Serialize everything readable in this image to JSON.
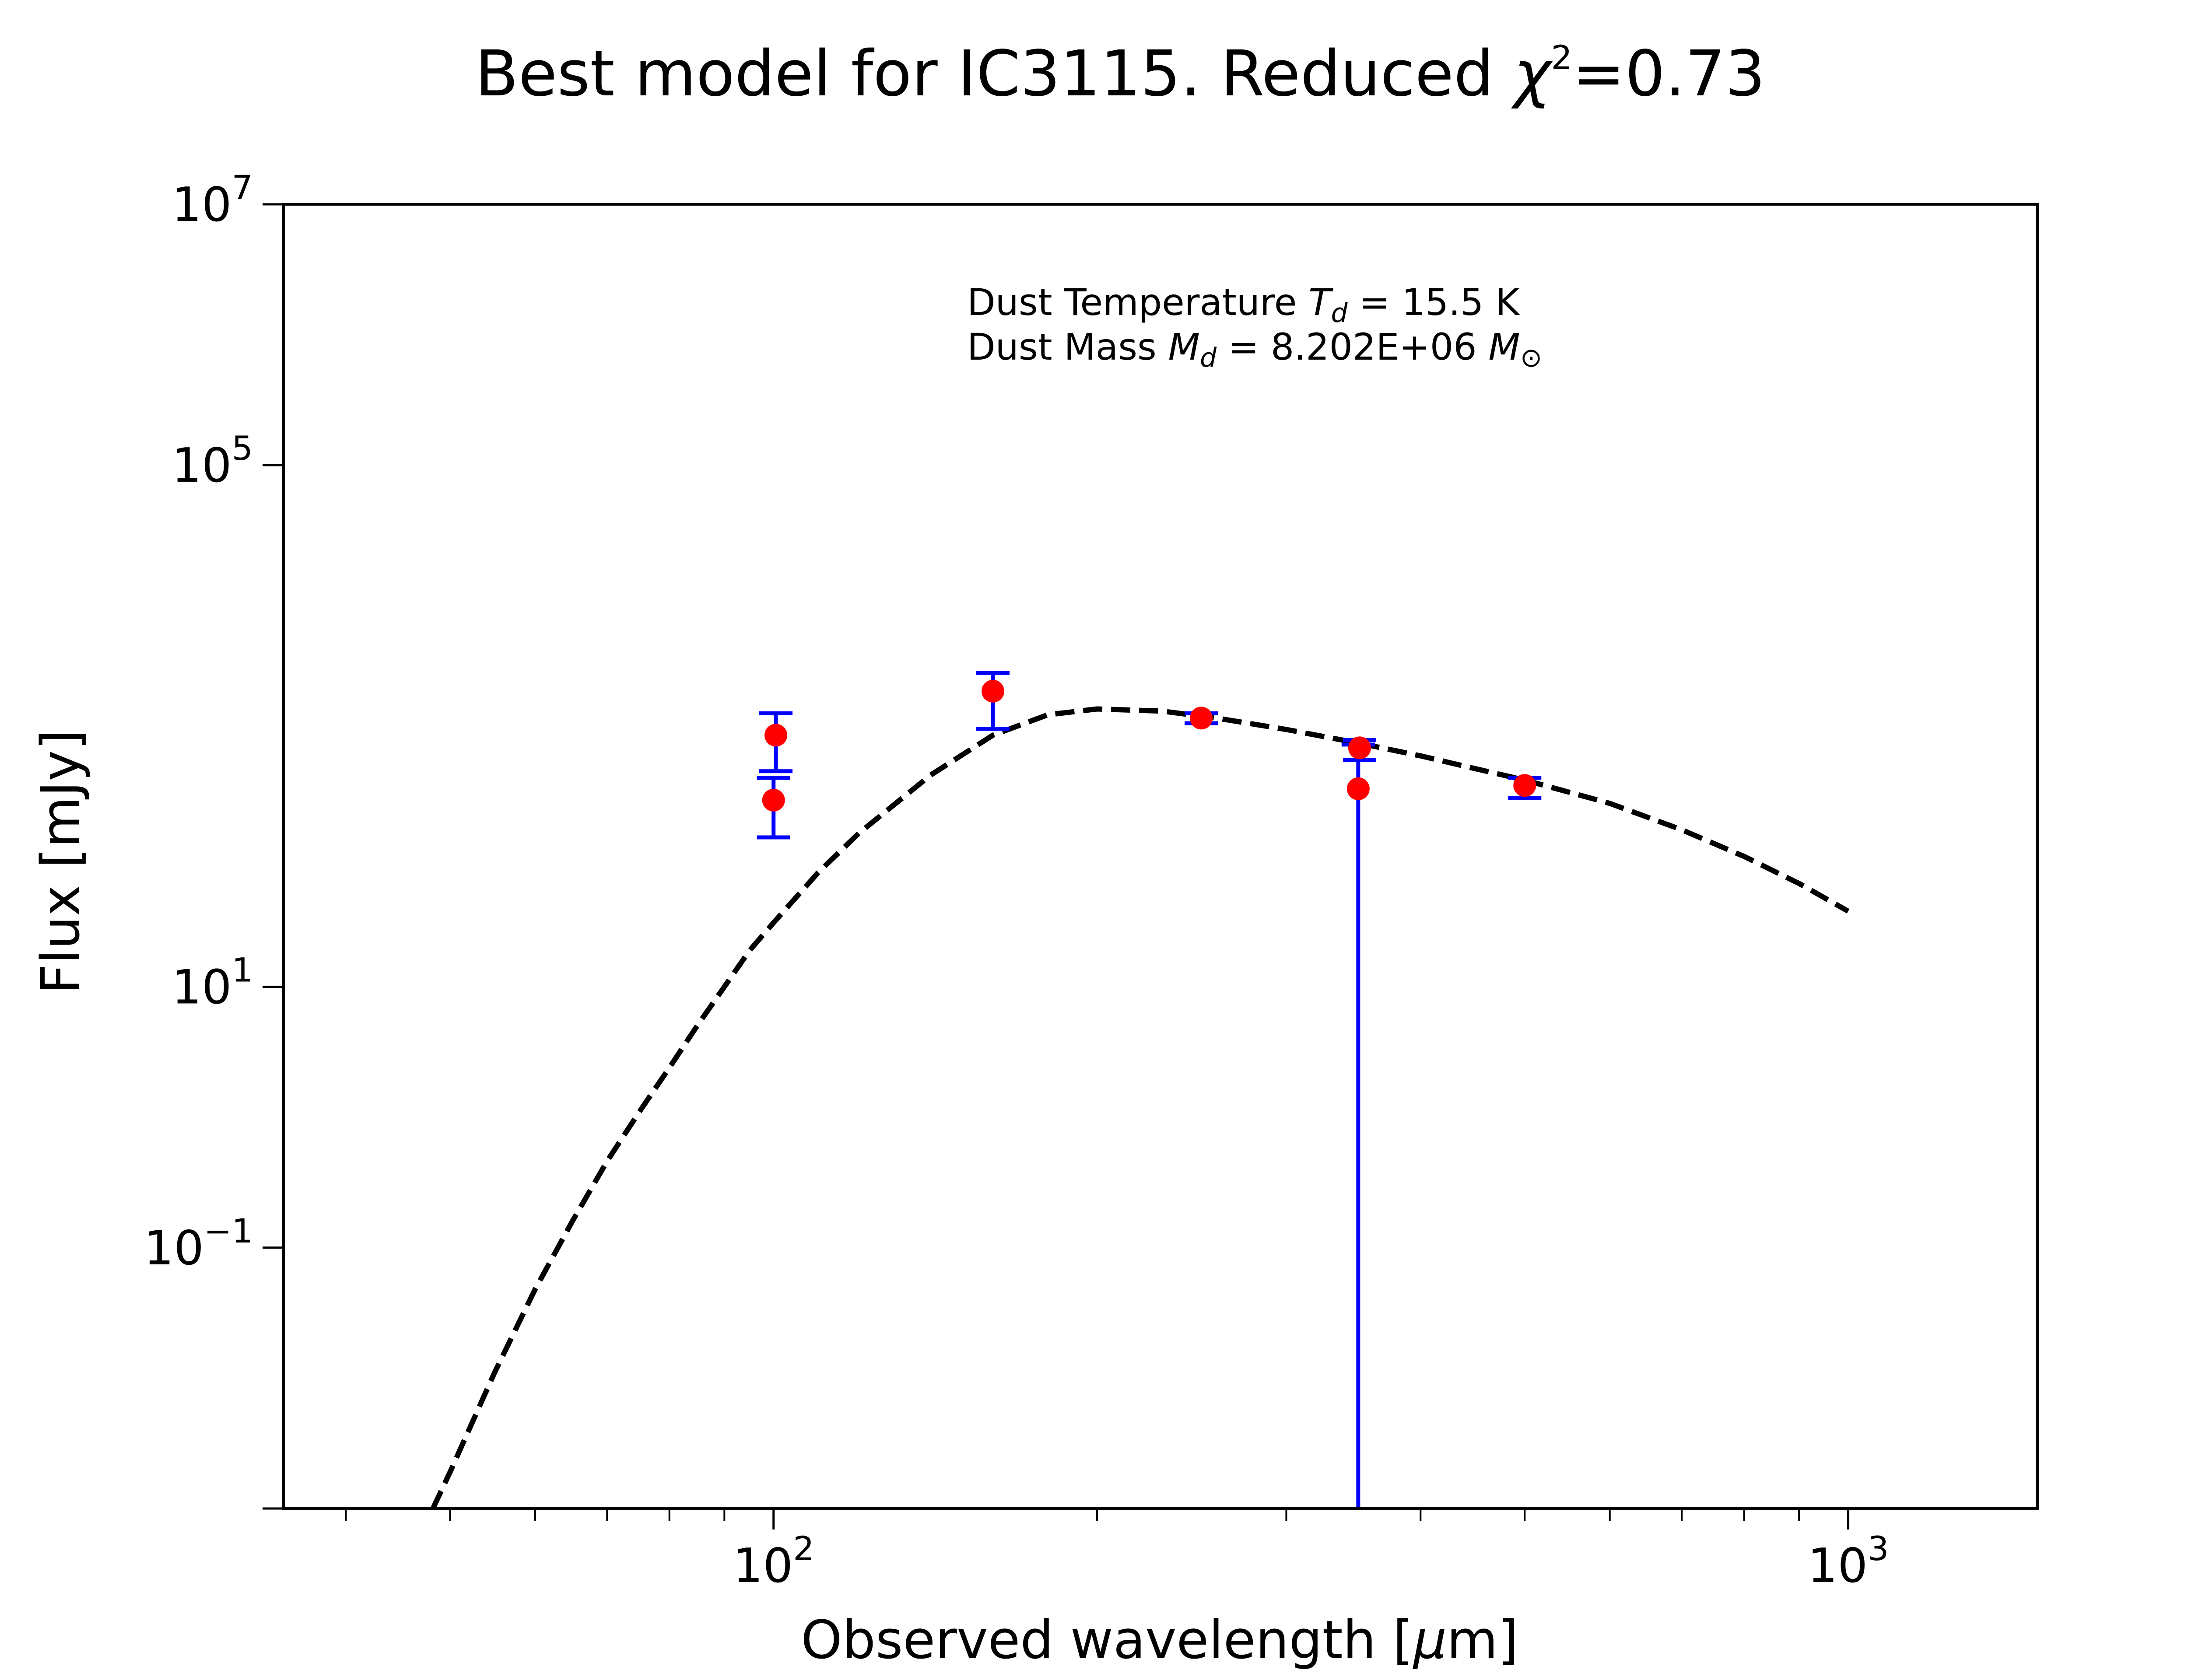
{
  "chart_data": {
    "type": "scatter",
    "title": {
      "prefix": "Best model for IC3115. Reduced ",
      "symbol": "χ",
      "superscript": "2",
      "suffix": "=0.73"
    },
    "xlabel": {
      "text": "Observed wavelength [",
      "unit_symbol": "μ",
      "unit_rest": "m]"
    },
    "ylabel": "Flux [mJy]",
    "x_scale": "log",
    "y_scale": "log",
    "xlim": [
      35,
      1500
    ],
    "ylim": [
      0.001,
      10000000
    ],
    "x_ticks": [
      {
        "value": 100,
        "base": "10",
        "exp": "2"
      },
      {
        "value": 1000,
        "base": "10",
        "exp": "3"
      }
    ],
    "y_ticks": [
      {
        "value": 0.1,
        "base": "10",
        "exp": "−1"
      },
      {
        "value": 10,
        "base": "10",
        "exp": "1"
      },
      {
        "value": 100000,
        "base": "10",
        "exp": "5"
      },
      {
        "value": 10000000,
        "base": "10",
        "exp": "7"
      }
    ],
    "model_curve": {
      "style": "dashed",
      "color": "#000000",
      "x": [
        48.2,
        50,
        55,
        60,
        65,
        70,
        75,
        80,
        85,
        90,
        95,
        100,
        110,
        120,
        140,
        160,
        180,
        200,
        230,
        260,
        300,
        350,
        400,
        450,
        500,
        600,
        700,
        800,
        900,
        1000
      ],
      "y": [
        0.001,
        0.0019,
        0.011,
        0.048,
        0.16,
        0.46,
        1.1,
        2.4,
        5.1,
        10,
        19,
        31,
        75,
        150,
        420,
        850,
        1220,
        1350,
        1300,
        1140,
        940,
        740,
        590,
        470,
        385,
        255,
        160,
        100,
        62,
        38
      ]
    },
    "data_points": {
      "color": "#ff0000",
      "error_color": "#0000ff",
      "x": [
        100,
        100.5,
        160,
        250,
        350,
        351,
        500
      ],
      "y": [
        270,
        850,
        1850,
        1150,
        330,
        680,
        350
      ],
      "y_err_low": [
        140,
        450,
        950,
        1050,
        0.001,
        550,
        280
      ],
      "y_err_high": [
        400,
        1250,
        2550,
        1250,
        720,
        780,
        400
      ]
    },
    "annotation": {
      "line1": {
        "prefix": "Dust Temperature ",
        "symbol": "T",
        "sub": "d",
        "suffix": " = 15.5 K"
      },
      "line2": {
        "prefix": "Dust Mass ",
        "symbol": "M",
        "sub": "d",
        "value": " = 8.202E+06 ",
        "unit": "M",
        "unit_sub": "⊙"
      }
    }
  }
}
